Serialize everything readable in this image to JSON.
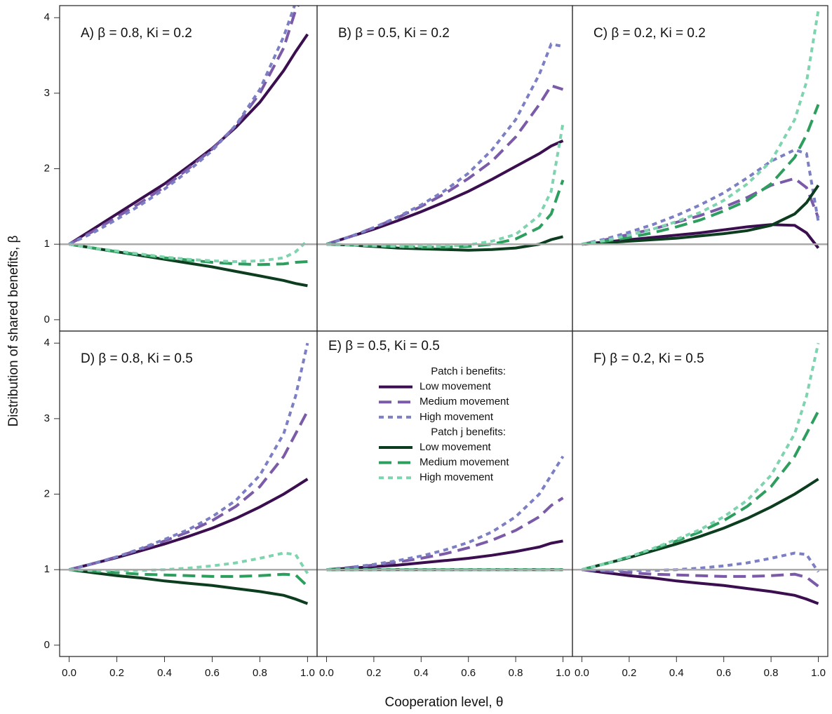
{
  "xlabel": "Cooperation level, θ",
  "ylabel": "Distribution of shared benefits, β",
  "chart_data": [
    {
      "type": "line",
      "title": "A) β = 0.8, Ki = 0.2",
      "x": [
        0,
        0.1,
        0.2,
        0.3,
        0.4,
        0.5,
        0.6,
        0.7,
        0.8,
        0.9,
        0.95,
        1.0
      ],
      "xlim": [
        -0.04,
        1.04
      ],
      "ylim": [
        -0.15,
        4.16
      ],
      "yticks": [
        0,
        1,
        2,
        3,
        4
      ],
      "hline": 1,
      "hline_color": "#aaaaaa",
      "series": [
        {
          "color": "#3b0f4f",
          "style": "solid",
          "values": [
            1,
            1.2,
            1.4,
            1.6,
            1.8,
            2.03,
            2.27,
            2.55,
            2.88,
            3.3,
            3.55,
            3.78
          ]
        },
        {
          "color": "#7b5ba8",
          "style": "dashed",
          "values": [
            1,
            1.17,
            1.36,
            1.55,
            1.76,
            2.0,
            2.26,
            2.57,
            3.0,
            3.6,
            4.1,
            4.4
          ]
        },
        {
          "color": "#7c7fc4",
          "style": "dotted",
          "values": [
            1,
            1.15,
            1.33,
            1.52,
            1.73,
            1.97,
            2.24,
            2.58,
            3.05,
            3.75,
            4.2,
            4.6
          ]
        },
        {
          "color": "#0d3d1f",
          "style": "solid",
          "values": [
            1,
            0.95,
            0.9,
            0.85,
            0.8,
            0.75,
            0.7,
            0.64,
            0.58,
            0.52,
            0.48,
            0.45
          ]
        },
        {
          "color": "#2e9e5e",
          "style": "dashed",
          "values": [
            1,
            0.95,
            0.9,
            0.86,
            0.82,
            0.79,
            0.76,
            0.74,
            0.73,
            0.74,
            0.76,
            0.77
          ]
        },
        {
          "color": "#7fd4b0",
          "style": "dotted",
          "values": [
            1,
            0.95,
            0.91,
            0.87,
            0.83,
            0.8,
            0.78,
            0.77,
            0.78,
            0.82,
            0.9,
            1.05
          ]
        }
      ]
    },
    {
      "type": "line",
      "title": "B) β = 0.5, Ki = 0.2",
      "x": [
        0,
        0.1,
        0.2,
        0.3,
        0.4,
        0.5,
        0.6,
        0.7,
        0.8,
        0.9,
        0.95,
        1.0
      ],
      "xlim": [
        -0.04,
        1.04
      ],
      "ylim": [
        -0.15,
        4.16
      ],
      "hline": 1,
      "hline_color": "#aaaaaa",
      "series": [
        {
          "color": "#3b0f4f",
          "style": "solid",
          "values": [
            1,
            1.1,
            1.2,
            1.31,
            1.43,
            1.56,
            1.7,
            1.86,
            2.03,
            2.2,
            2.3,
            2.37
          ]
        },
        {
          "color": "#7b5ba8",
          "style": "dashed",
          "values": [
            1,
            1.1,
            1.22,
            1.35,
            1.5,
            1.67,
            1.87,
            2.1,
            2.42,
            2.85,
            3.1,
            3.05
          ]
        },
        {
          "color": "#7c7fc4",
          "style": "dotted",
          "values": [
            1,
            1.1,
            1.22,
            1.36,
            1.52,
            1.71,
            1.94,
            2.25,
            2.65,
            3.25,
            3.65,
            3.62
          ]
        },
        {
          "color": "#0d3d1f",
          "style": "solid",
          "values": [
            1,
            0.99,
            0.97,
            0.95,
            0.94,
            0.93,
            0.92,
            0.93,
            0.95,
            1.0,
            1.06,
            1.1
          ]
        },
        {
          "color": "#2e9e5e",
          "style": "dashed",
          "values": [
            1,
            0.99,
            0.98,
            0.97,
            0.96,
            0.96,
            0.97,
            1.0,
            1.07,
            1.22,
            1.4,
            1.85
          ]
        },
        {
          "color": "#7fd4b0",
          "style": "dotted",
          "values": [
            1,
            0.99,
            0.98,
            0.97,
            0.97,
            0.97,
            0.99,
            1.04,
            1.13,
            1.38,
            1.7,
            2.6
          ]
        }
      ]
    },
    {
      "type": "line",
      "title": "C) β = 0.2, Ki = 0.2",
      "x": [
        0,
        0.1,
        0.2,
        0.3,
        0.4,
        0.5,
        0.6,
        0.7,
        0.8,
        0.9,
        0.95,
        1.0
      ],
      "xlim": [
        -0.04,
        1.04
      ],
      "ylim": [
        -0.15,
        4.16
      ],
      "hline": 1,
      "hline_color": "#aaaaaa",
      "series": [
        {
          "color": "#3b0f4f",
          "style": "solid",
          "values": [
            1,
            1.03,
            1.06,
            1.09,
            1.12,
            1.15,
            1.19,
            1.23,
            1.26,
            1.25,
            1.15,
            0.95
          ]
        },
        {
          "color": "#7b5ba8",
          "style": "dashed",
          "values": [
            1,
            1.06,
            1.13,
            1.2,
            1.29,
            1.38,
            1.49,
            1.62,
            1.78,
            1.87,
            1.75,
            1.35
          ]
        },
        {
          "color": "#7c7fc4",
          "style": "dotted",
          "values": [
            1,
            1.07,
            1.16,
            1.26,
            1.38,
            1.52,
            1.68,
            1.88,
            2.1,
            2.25,
            2.2,
            1.3
          ]
        },
        {
          "color": "#0d3d1f",
          "style": "solid",
          "values": [
            1,
            1.02,
            1.04,
            1.06,
            1.08,
            1.11,
            1.14,
            1.18,
            1.25,
            1.4,
            1.55,
            1.78
          ]
        },
        {
          "color": "#2e9e5e",
          "style": "dashed",
          "values": [
            1,
            1.04,
            1.09,
            1.15,
            1.23,
            1.32,
            1.44,
            1.58,
            1.8,
            2.15,
            2.45,
            2.85
          ]
        },
        {
          "color": "#7fd4b0",
          "style": "dotted",
          "values": [
            1,
            1.05,
            1.12,
            1.2,
            1.3,
            1.42,
            1.58,
            1.8,
            2.1,
            2.65,
            3.15,
            4.1
          ]
        }
      ]
    },
    {
      "type": "line",
      "title": "D) β = 0.8, Ki = 0.5",
      "x": [
        0,
        0.1,
        0.2,
        0.3,
        0.4,
        0.5,
        0.6,
        0.7,
        0.8,
        0.9,
        0.95,
        1.0
      ],
      "xlim": [
        -0.04,
        1.04
      ],
      "ylim": [
        -0.15,
        4.16
      ],
      "yticks": [
        0,
        1,
        2,
        3,
        4
      ],
      "hline": 1,
      "hline_color": "#aaaaaa",
      "xticks": [
        {
          "value": 0,
          "label": "0.0"
        },
        0.2,
        0.4,
        0.6,
        0.8,
        {
          "value": 1,
          "label": "1.0"
        }
      ],
      "series": [
        {
          "color": "#3b0f4f",
          "style": "solid",
          "values": [
            1,
            1.08,
            1.16,
            1.25,
            1.34,
            1.44,
            1.55,
            1.68,
            1.83,
            2.0,
            2.1,
            2.2
          ]
        },
        {
          "color": "#7b5ba8",
          "style": "dashed",
          "values": [
            1,
            1.08,
            1.17,
            1.27,
            1.38,
            1.5,
            1.65,
            1.84,
            2.1,
            2.5,
            2.8,
            3.1
          ]
        },
        {
          "color": "#7c7fc4",
          "style": "dotted",
          "values": [
            1,
            1.08,
            1.17,
            1.28,
            1.4,
            1.53,
            1.7,
            1.92,
            2.25,
            2.8,
            3.3,
            4.0
          ]
        },
        {
          "color": "#0d3d1f",
          "style": "solid",
          "values": [
            1,
            0.96,
            0.92,
            0.89,
            0.85,
            0.82,
            0.79,
            0.75,
            0.71,
            0.66,
            0.61,
            0.55
          ]
        },
        {
          "color": "#2e9e5e",
          "style": "dashed",
          "values": [
            1,
            0.98,
            0.96,
            0.94,
            0.93,
            0.92,
            0.91,
            0.91,
            0.92,
            0.94,
            0.93,
            0.78
          ]
        },
        {
          "color": "#7fd4b0",
          "style": "dotted",
          "values": [
            1,
            0.99,
            0.99,
            0.99,
            1.0,
            1.02,
            1.05,
            1.09,
            1.15,
            1.22,
            1.2,
            0.95
          ]
        }
      ]
    },
    {
      "type": "line",
      "title": "E) β = 0.5, Ki = 0.5",
      "x": [
        0,
        0.1,
        0.2,
        0.3,
        0.4,
        0.5,
        0.6,
        0.7,
        0.8,
        0.9,
        0.95,
        1.0
      ],
      "xlim": [
        -0.04,
        1.04
      ],
      "ylim": [
        -0.15,
        4.16
      ],
      "hline": 1,
      "hline_color": "#aaaaaa",
      "xticks": [
        {
          "value": 0,
          "label": "0.0"
        },
        0.2,
        0.4,
        0.6,
        0.8,
        {
          "value": 1,
          "label": "1.0"
        }
      ],
      "legend_groups": [
        "Patch i benefits:",
        "Patch j benefits:"
      ],
      "series": [
        {
          "name": "Low movement",
          "color": "#3b0f4f",
          "style": "solid",
          "values": [
            1,
            1.02,
            1.04,
            1.06,
            1.09,
            1.12,
            1.15,
            1.19,
            1.24,
            1.3,
            1.35,
            1.38
          ]
        },
        {
          "name": "Medium movement",
          "color": "#7b5ba8",
          "style": "dashed",
          "values": [
            1,
            1.03,
            1.06,
            1.1,
            1.15,
            1.21,
            1.29,
            1.39,
            1.52,
            1.7,
            1.85,
            1.95
          ]
        },
        {
          "name": "High movement",
          "color": "#7c7fc4",
          "style": "dotted",
          "values": [
            1,
            1.03,
            1.07,
            1.12,
            1.18,
            1.26,
            1.36,
            1.5,
            1.7,
            2.0,
            2.25,
            2.5
          ]
        },
        {
          "name": "Low movement",
          "color": "#0d3d1f",
          "style": "solid",
          "values": [
            1,
            1,
            1,
            1,
            1,
            1,
            1,
            1,
            1,
            1,
            1,
            1
          ]
        },
        {
          "name": "Medium movement",
          "color": "#2e9e5e",
          "style": "dashed",
          "values": [
            1,
            1,
            1,
            1,
            1,
            1,
            1,
            1,
            1,
            1,
            1,
            1
          ]
        },
        {
          "name": "High movement",
          "color": "#7fd4b0",
          "style": "dotted",
          "values": [
            1,
            1,
            1,
            1,
            1,
            1,
            1,
            1,
            1,
            1,
            1,
            1
          ]
        }
      ]
    },
    {
      "type": "line",
      "title": "F) β = 0.2, Ki = 0.5",
      "x": [
        0,
        0.1,
        0.2,
        0.3,
        0.4,
        0.5,
        0.6,
        0.7,
        0.8,
        0.9,
        0.95,
        1.0
      ],
      "xlim": [
        -0.04,
        1.04
      ],
      "ylim": [
        -0.15,
        4.16
      ],
      "hline": 1,
      "hline_color": "#aaaaaa",
      "xticks": [
        {
          "value": 0,
          "label": "0.0"
        },
        0.2,
        0.4,
        0.6,
        0.8,
        {
          "value": 1,
          "label": "1.0"
        }
      ],
      "series": [
        {
          "color": "#3b0f4f",
          "style": "solid",
          "values": [
            1,
            0.96,
            0.92,
            0.89,
            0.85,
            0.82,
            0.79,
            0.75,
            0.71,
            0.66,
            0.61,
            0.55
          ]
        },
        {
          "color": "#7b5ba8",
          "style": "dashed",
          "values": [
            1,
            0.98,
            0.96,
            0.94,
            0.93,
            0.92,
            0.91,
            0.91,
            0.92,
            0.94,
            0.9,
            0.78
          ]
        },
        {
          "color": "#7c7fc4",
          "style": "dotted",
          "values": [
            1,
            0.99,
            0.99,
            0.99,
            1.0,
            1.02,
            1.05,
            1.09,
            1.15,
            1.22,
            1.2,
            0.97
          ]
        },
        {
          "color": "#0d3d1f",
          "style": "solid",
          "values": [
            1,
            1.08,
            1.16,
            1.25,
            1.34,
            1.44,
            1.55,
            1.68,
            1.83,
            2.0,
            2.1,
            2.2
          ]
        },
        {
          "color": "#2e9e5e",
          "style": "dashed",
          "values": [
            1,
            1.08,
            1.17,
            1.27,
            1.38,
            1.5,
            1.65,
            1.84,
            2.1,
            2.5,
            2.8,
            3.1
          ]
        },
        {
          "color": "#7fd4b0",
          "style": "dotted",
          "values": [
            1,
            1.08,
            1.17,
            1.28,
            1.4,
            1.53,
            1.7,
            1.92,
            2.25,
            2.8,
            3.3,
            4.0
          ]
        }
      ]
    }
  ]
}
